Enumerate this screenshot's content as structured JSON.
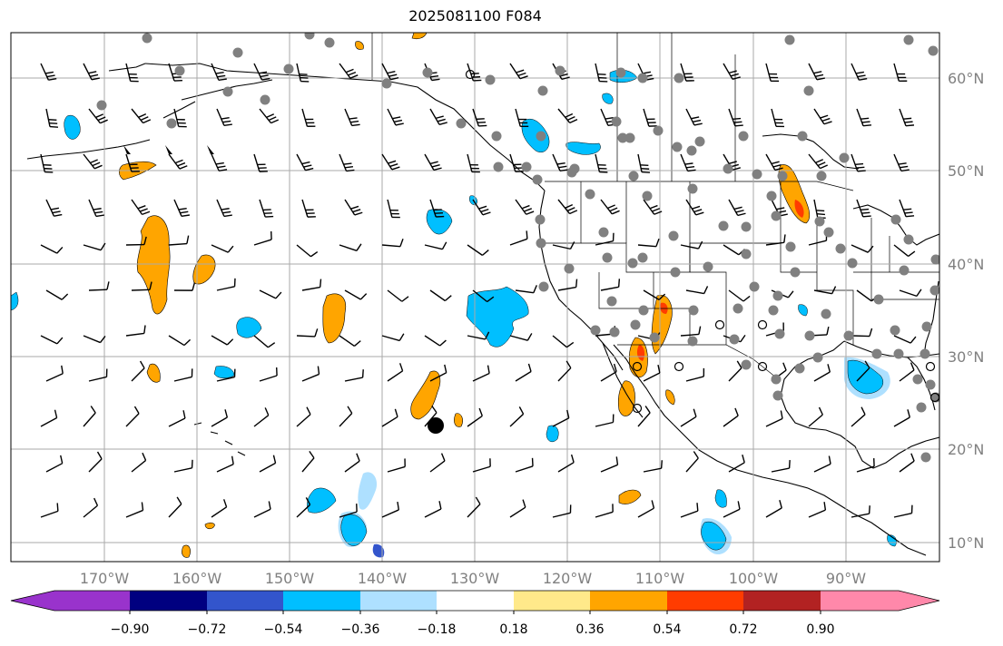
{
  "title": "2025081100 F084",
  "lon_labels": [
    "170°W",
    "160°W",
    "150°W",
    "140°W",
    "130°W",
    "120°W",
    "110°W",
    "100°W",
    "90°W"
  ],
  "lat_labels": [
    "60°N",
    "50°N",
    "40°N",
    "30°N",
    "20°N",
    "10°N"
  ],
  "colorbar": {
    "ticks": [
      "−0.90",
      "−0.72",
      "−0.54",
      "−0.36",
      "−0.18",
      "0.18",
      "0.36",
      "0.54",
      "0.72",
      "0.90"
    ],
    "colors": [
      "#9933cc",
      "#000080",
      "#3355cc",
      "#00bfff",
      "#aee0ff",
      "#ffffff",
      "#ffe98a",
      "#ffa500",
      "#ff3c00",
      "#b22222",
      "#ff88aa"
    ]
  },
  "map": {
    "extent_lon": [
      -180,
      -80
    ],
    "extent_lat": [
      8,
      65
    ],
    "colors": {
      "grid": "#aaaaaa",
      "coast": "#000000",
      "positive": "#ffa500",
      "strong_positive": "#ff3c00",
      "negative": "#00bfff",
      "weak_negative": "#aee0ff",
      "station": "#808080"
    }
  }
}
